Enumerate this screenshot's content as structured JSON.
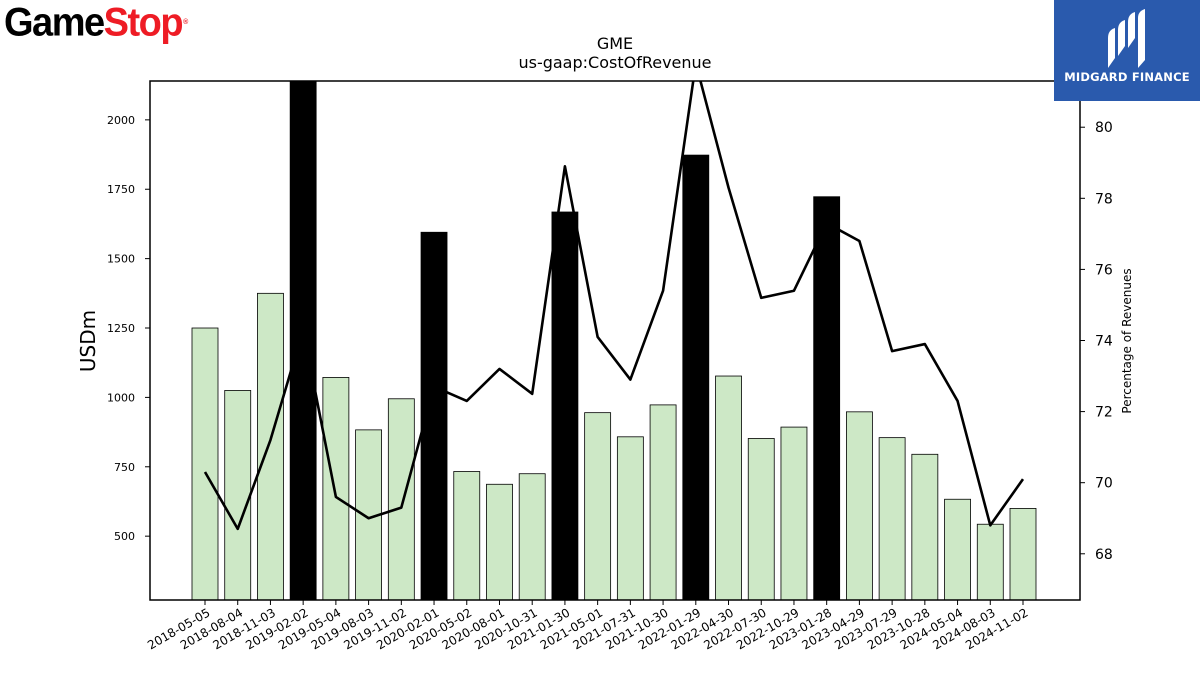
{
  "logos": {
    "left_word1": "Game",
    "left_word2": "Stop",
    "left_mark": "®",
    "right_text": "MIDGARD FINANCE",
    "right_icon": "midgard-m-icon",
    "brand_red": "#ee1c25",
    "brand_blue": "#2a5aad"
  },
  "chart_data": {
    "type": "bar",
    "title": "GME",
    "subtitle": "us-gaap:CostOfRevenue",
    "ylabel": "USDm",
    "y2label": "Percentage of Revenues",
    "ylim": [
      270,
      2140
    ],
    "y2lim": [
      66.7,
      81.3
    ],
    "yticks": [
      500,
      750,
      1000,
      1250,
      1500,
      1750,
      2000
    ],
    "y2ticks": [
      68,
      70,
      72,
      74,
      76,
      78,
      80
    ],
    "grid": false,
    "categories": [
      "2018-05-05",
      "2018-08-04",
      "2018-11-03",
      "2019-02-02",
      "2019-05-04",
      "2019-08-03",
      "2019-11-02",
      "2020-02-01",
      "2020-05-02",
      "2020-08-01",
      "2020-10-31",
      "2021-01-30",
      "2021-05-01",
      "2021-07-31",
      "2021-10-30",
      "2022-01-29",
      "2022-04-30",
      "2022-07-30",
      "2022-10-29",
      "2023-01-28",
      "2023-04-29",
      "2023-07-29",
      "2023-10-28",
      "2024-05-04",
      "2024-08-03",
      "2024-11-02"
    ],
    "series": [
      {
        "kind": "bar",
        "values": [
          1250,
          1025,
          1375,
          2200,
          1072,
          883,
          995,
          1595,
          733,
          687,
          725,
          1668,
          945,
          858,
          973,
          1873,
          1077,
          852,
          893,
          1723,
          948,
          855,
          795,
          633,
          543,
          600
        ],
        "highlight": [
          false,
          false,
          false,
          true,
          false,
          false,
          false,
          true,
          false,
          false,
          false,
          true,
          false,
          false,
          false,
          true,
          false,
          false,
          false,
          true,
          false,
          false,
          false,
          false,
          false,
          false
        ],
        "color": "#cde8c6",
        "highlight_color": "#000000"
      },
      {
        "kind": "line",
        "axis": "right",
        "values": [
          70.3,
          68.7,
          71.2,
          74.3,
          69.6,
          69.0,
          69.3,
          72.7,
          72.3,
          73.2,
          72.5,
          78.9,
          74.1,
          72.9,
          75.4,
          81.8,
          78.3,
          75.2,
          75.4,
          77.3,
          76.8,
          73.7,
          73.9,
          72.3,
          68.8,
          70.1
        ],
        "color": "#000000"
      }
    ]
  }
}
